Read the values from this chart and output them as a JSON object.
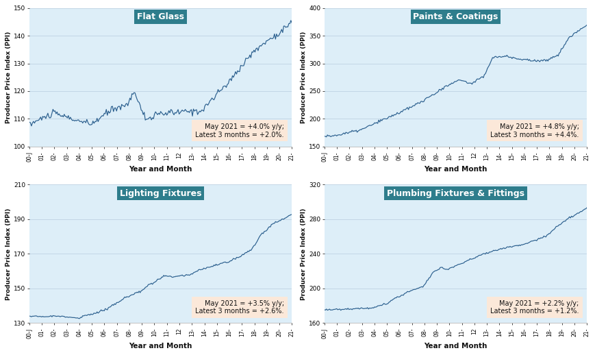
{
  "charts": [
    {
      "title": "Flat Glass",
      "ylabel": "Producer Price Index (PPI)",
      "xlabel": "Year and Month",
      "ylim": [
        100,
        150
      ],
      "yticks": [
        100,
        110,
        120,
        130,
        140,
        150
      ],
      "annotation": "May 2021 = +4.0% y/y;\nLatest 3 months = +2.0%.",
      "color": "#2b5f8e"
    },
    {
      "title": "Paints & Coatings",
      "ylabel": "Producer Price Index (PPI)",
      "xlabel": "Year and Month",
      "ylim": [
        150,
        400
      ],
      "yticks": [
        150,
        200,
        250,
        300,
        350,
        400
      ],
      "annotation": "May 2021 = +4.8% y/y;\nLatest 3 months = +4.4%.",
      "color": "#2b5f8e"
    },
    {
      "title": "Lighting Fixtures",
      "ylabel": "Producer Price Index (PPI)",
      "xlabel": "Year and Month",
      "ylim": [
        130,
        210
      ],
      "yticks": [
        130,
        150,
        170,
        190,
        210
      ],
      "annotation": "May 2021 = +3.5% y/y;\nLatest 3 months = +2.6%.",
      "color": "#2b5f8e"
    },
    {
      "title": "Plumbing Fixtures & Fittings",
      "ylabel": "Producer Price Index (PPI)",
      "xlabel": "Year and Month",
      "ylim": [
        160,
        320
      ],
      "yticks": [
        160,
        200,
        240,
        280,
        320
      ],
      "annotation": "May 2021 = +2.2% y/y;\nLatest 3 months = +1.2%.",
      "color": "#2b5f8e"
    }
  ],
  "x_tick_labels": [
    "00-J",
    "01-",
    "02-",
    "03-",
    "04-",
    "05-",
    "06-",
    "07-",
    "08-",
    "09-",
    "10-",
    "11-",
    "12",
    "13-",
    "14-",
    "15-",
    "16-",
    "17-",
    "18-",
    "19-",
    "20-",
    "21-"
  ],
  "bg_color": "#ddeef8",
  "title_bg": "#2e7d8c",
  "title_fg": "#ffffff",
  "annotation_bg": "#fde8d8",
  "line_color": "#2b5f8e",
  "fig_bg": "#ffffff"
}
